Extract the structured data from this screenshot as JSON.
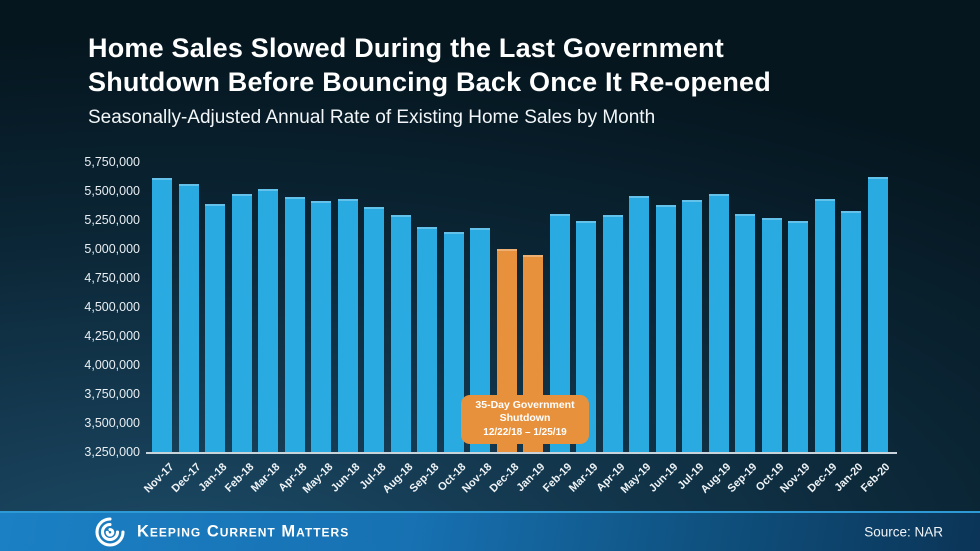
{
  "slide": {
    "title_lines": [
      "Home Sales Slowed During the Last Government",
      "Shutdown Before Bouncing Back Once It Re-opened"
    ],
    "subtitle": "Seasonally-Adjusted Annual Rate of Existing Home Sales by Month",
    "footer": {
      "brand": "Keeping Current Matters",
      "source": "Source: NAR"
    },
    "colors": {
      "bar_blue": "#29ABE2",
      "bar_orange": "#E8913C",
      "axis_line": "#C9D3DA",
      "background_dark": "#05161F",
      "background_light": "#1D4B67",
      "footer_left": "#1B80C4",
      "footer_right": "#0B3457",
      "text": "#FFFFFF"
    }
  },
  "chart_data": {
    "type": "bar",
    "title": "Home Sales Slowed During the Last Government Shutdown Before Bouncing Back Once It Re-opened",
    "subtitle": "Seasonally-Adjusted Annual Rate of Existing Home Sales by Month",
    "categories": [
      "Nov-17",
      "Dec-17",
      "Jan-18",
      "Feb-18",
      "Mar-18",
      "Apr-18",
      "May-18",
      "Jun-18",
      "Jul-18",
      "Aug-18",
      "Sep-18",
      "Oct-18",
      "Nov-18",
      "Dec-18",
      "Jan-19",
      "Feb-19",
      "Mar-19",
      "Apr-19",
      "May-19",
      "Jun-19",
      "Jul-19",
      "Aug-19",
      "Sep-19",
      "Oct-19",
      "Nov-19",
      "Dec-19",
      "Jan-20",
      "Feb-20"
    ],
    "values": [
      5610000,
      5560000,
      5390000,
      5470000,
      5520000,
      5450000,
      5410000,
      5430000,
      5360000,
      5290000,
      5190000,
      5150000,
      5180000,
      5000000,
      4950000,
      5300000,
      5240000,
      5290000,
      5460000,
      5380000,
      5420000,
      5470000,
      5300000,
      5270000,
      5240000,
      5430000,
      5330000,
      5620000
    ],
    "highlight": {
      "indices": [
        13,
        14
      ],
      "color": "#E8913C",
      "label": "35-Day Government Shutdown",
      "dates": "12/22/18 – 1/25/19"
    },
    "y_axis": {
      "min": 3250000,
      "max": 5750000,
      "step": 250000
    },
    "grid": false,
    "legend": false,
    "bar_color": "#29ABE2",
    "source": "NAR"
  }
}
